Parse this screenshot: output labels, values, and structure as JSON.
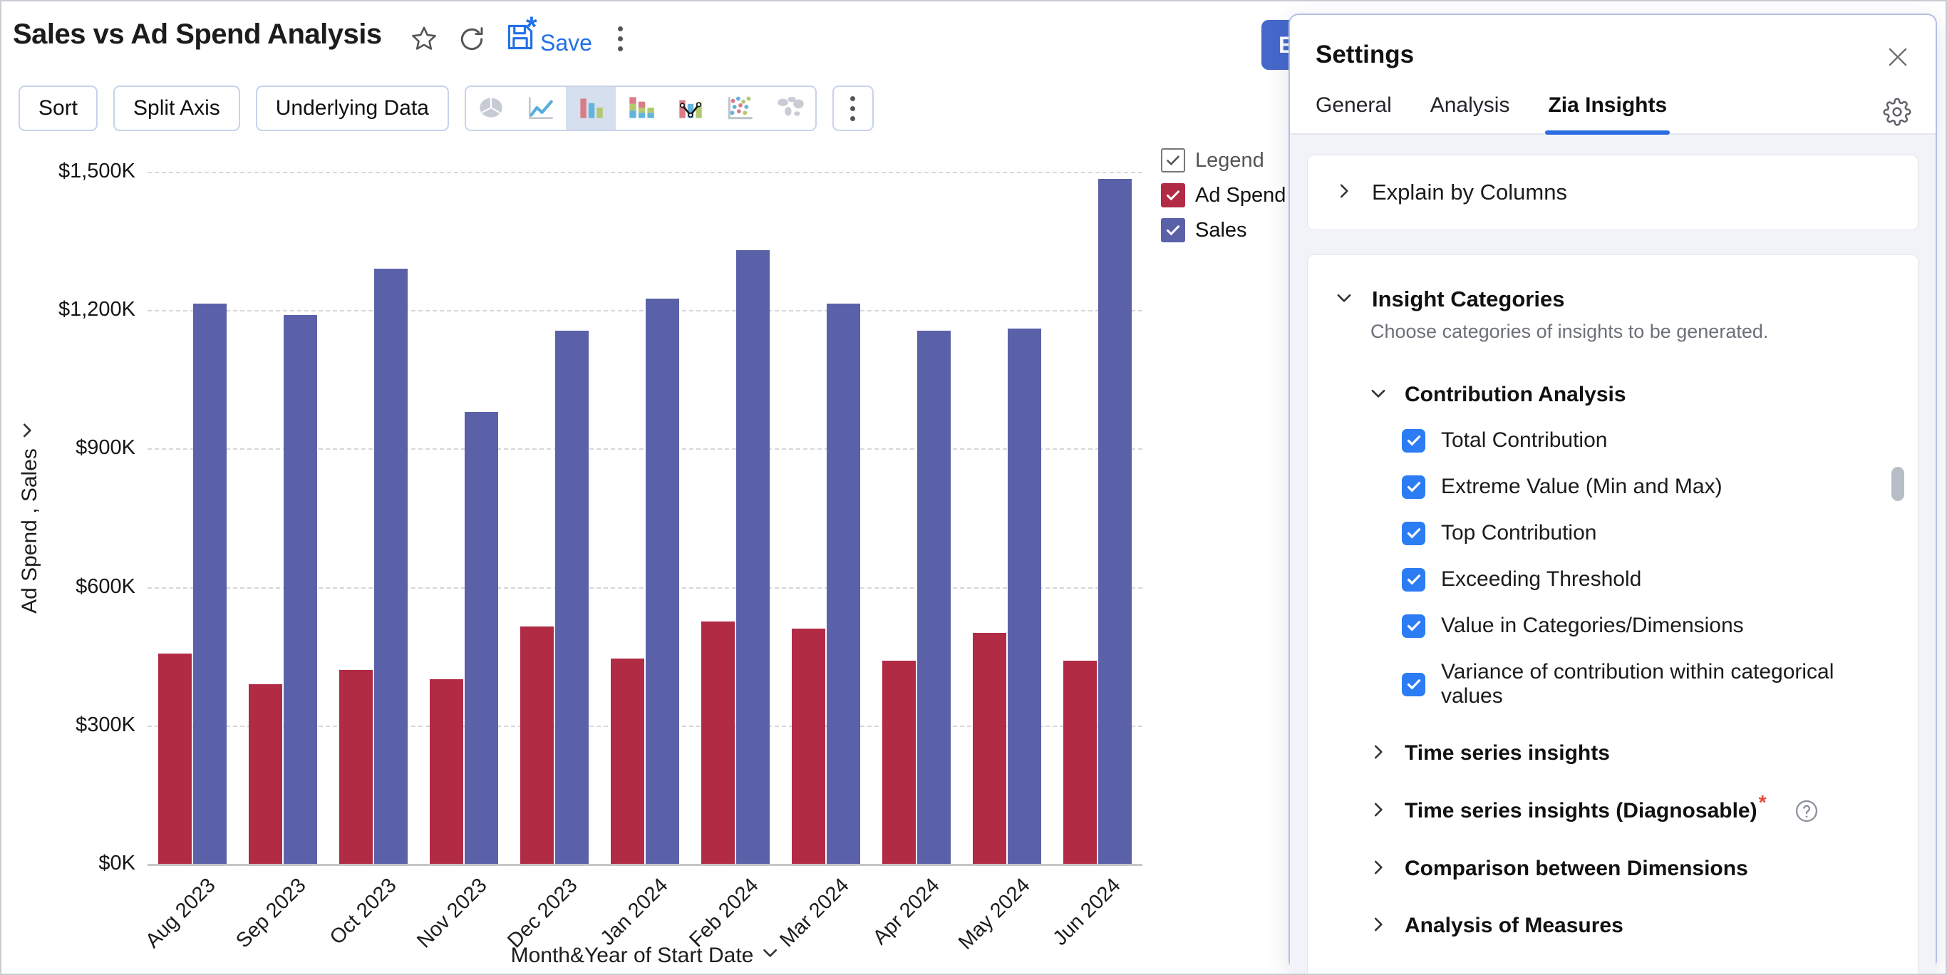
{
  "header": {
    "title": "Sales vs Ad Spend Analysis",
    "save_label": "Save",
    "edit_button_label": "E"
  },
  "toolbar": {
    "buttons": [
      {
        "label": "Sort"
      },
      {
        "label": "Split Axis"
      },
      {
        "label": "Underlying Data"
      }
    ],
    "chart_types": [
      {
        "icon": "pie-chart-icon",
        "selected": false
      },
      {
        "icon": "line-chart-icon",
        "selected": false
      },
      {
        "icon": "bar-chart-icon",
        "selected": true
      },
      {
        "icon": "stacked-bar-chart-icon",
        "selected": false
      },
      {
        "icon": "combo-chart-icon",
        "selected": false
      },
      {
        "icon": "scatter-chart-icon",
        "selected": false
      },
      {
        "icon": "map-chart-icon",
        "selected": false
      }
    ]
  },
  "chart_data": {
    "type": "bar",
    "title": "",
    "categories": [
      "Aug 2023",
      "Sep 2023",
      "Oct 2023",
      "Nov 2023",
      "Dec 2023",
      "Jan 2024",
      "Feb 2024",
      "Mar 2024",
      "Apr 2024",
      "May 2024",
      "Jun 2024"
    ],
    "series": [
      {
        "name": "Ad Spend",
        "color": "#B12B44",
        "values": [
          455,
          390,
          420,
          400,
          515,
          445,
          525,
          510,
          440,
          500,
          440
        ]
      },
      {
        "name": "Sales",
        "color": "#5B61A9",
        "values": [
          1215,
          1190,
          1290,
          980,
          1155,
          1225,
          1330,
          1215,
          1155,
          1160,
          1485
        ]
      }
    ],
    "values_unit": "K (thousand dollars)",
    "xlabel": "Month&Year of Start Date",
    "ylabel": "Ad Spend , Sales",
    "ylim": [
      0,
      1500
    ],
    "yticks": [
      {
        "value": 1500,
        "label": "$1,500K"
      },
      {
        "value": 1200,
        "label": "$1,200K"
      },
      {
        "value": 900,
        "label": "$900K"
      },
      {
        "value": 600,
        "label": "$600K"
      },
      {
        "value": 300,
        "label": "$300K"
      },
      {
        "value": 0,
        "label": "$0K"
      }
    ],
    "grid": "horizontal-dashed",
    "legend_position": "right"
  },
  "legend": {
    "master": {
      "label": "Legend",
      "checked": true
    },
    "items": [
      {
        "label": "Ad Spend",
        "color": "#B12B44",
        "checked": true
      },
      {
        "label": "Sales",
        "color": "#5B61A9",
        "checked": true
      }
    ]
  },
  "settings": {
    "title": "Settings",
    "tabs": [
      {
        "label": "General",
        "active": false
      },
      {
        "label": "Analysis",
        "active": false
      },
      {
        "label": "Zia Insights",
        "active": true
      }
    ],
    "explain_section": {
      "label": "Explain by Columns",
      "expanded": false
    },
    "insight_categories": {
      "label": "Insight Categories",
      "expanded": true,
      "subtitle": "Choose categories of insights to be generated.",
      "groups": [
        {
          "label": "Contribution Analysis",
          "expanded": true,
          "items": [
            {
              "label": "Total Contribution",
              "checked": true
            },
            {
              "label": "Extreme Value (Min and Max)",
              "checked": true
            },
            {
              "label": "Top Contribution",
              "checked": true
            },
            {
              "label": "Exceeding Threshold",
              "checked": true
            },
            {
              "label": "Value in Categories/Dimensions",
              "checked": true
            },
            {
              "label": "Variance of contribution within categorical values",
              "checked": true
            }
          ]
        },
        {
          "label": "Time series insights",
          "expanded": false
        },
        {
          "label": "Time series insights (Diagnosable)",
          "expanded": false,
          "required_marker": "*",
          "has_help": true
        },
        {
          "label": "Comparison between Dimensions",
          "expanded": false
        },
        {
          "label": "Analysis of Measures",
          "expanded": false
        }
      ]
    }
  }
}
